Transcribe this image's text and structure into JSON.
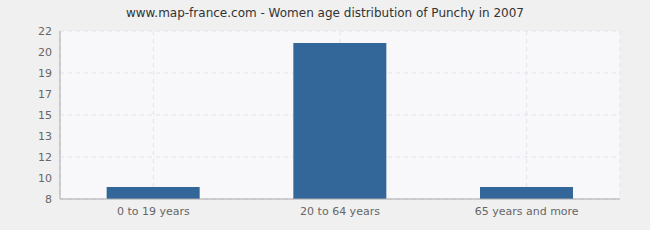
{
  "chart_data": {
    "type": "bar",
    "title": "www.map-france.com - Women age distribution of Punchy in 2007",
    "categories": [
      "0 to 19 years",
      "20 to 64 years",
      "65 years and more"
    ],
    "values": [
      9,
      21,
      9
    ],
    "color": "#336699",
    "ylim": [
      8,
      22
    ],
    "yticks": [
      8,
      {
        "value": 9.75,
        "label": "10"
      },
      {
        "value": 11.5,
        "label": "12"
      },
      {
        "value": 13.25,
        "label": "13"
      },
      15,
      {
        "value": 16.75,
        "label": "17"
      },
      {
        "value": 18.5,
        "label": "19"
      },
      {
        "value": 20.25,
        "label": "20"
      },
      22
    ],
    "grid": true
  }
}
